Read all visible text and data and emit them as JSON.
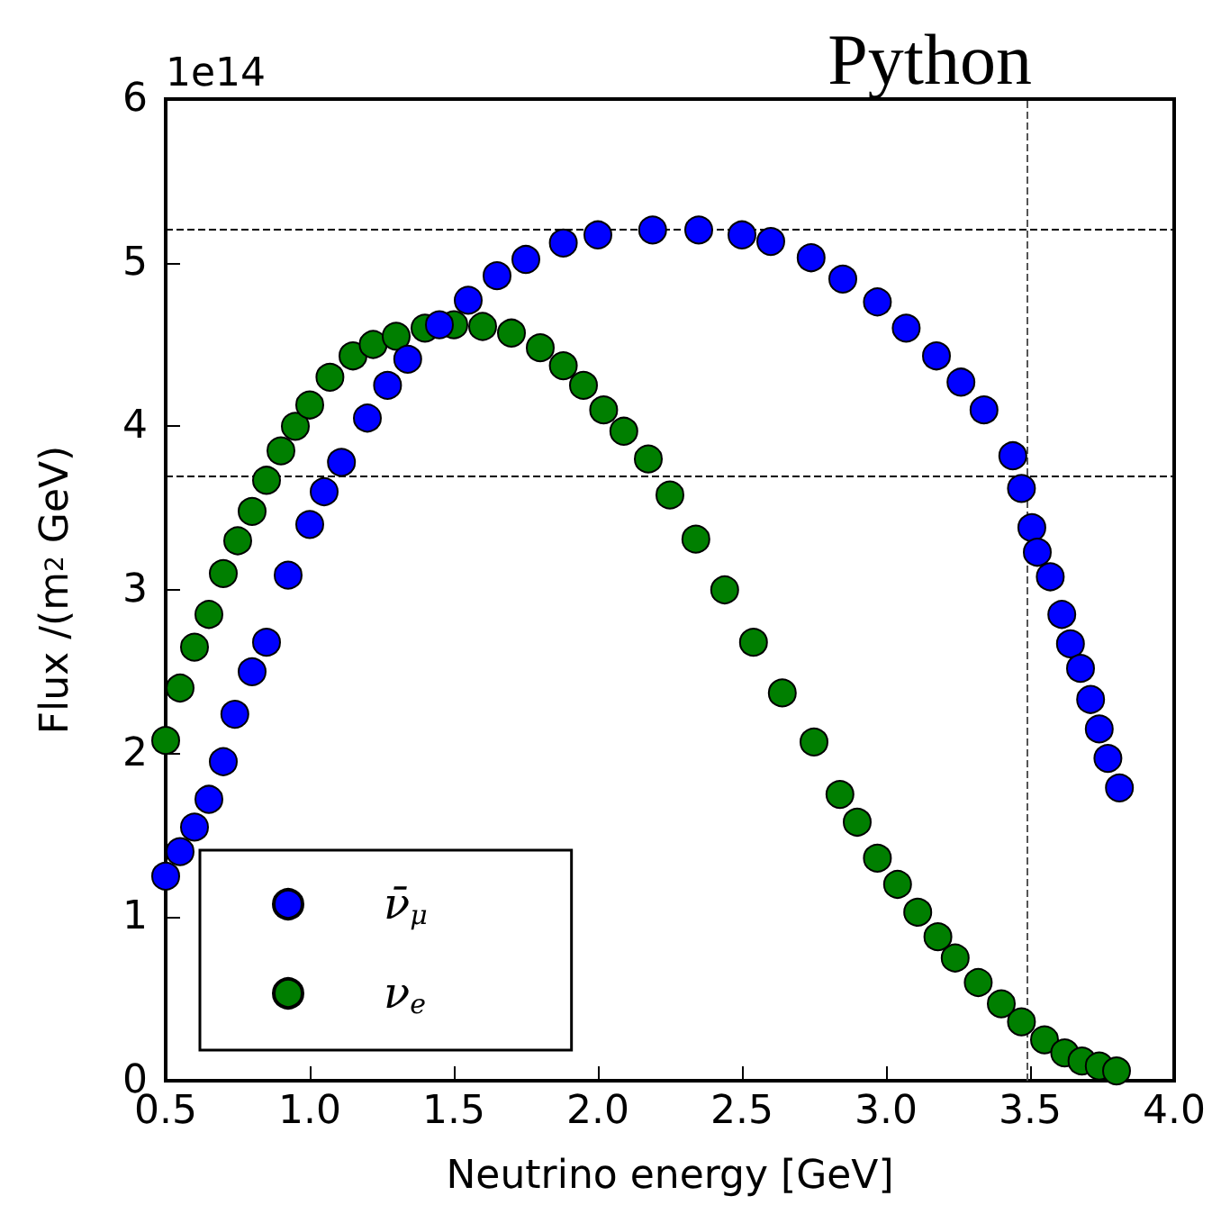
{
  "chart_data": {
    "type": "scatter",
    "title": "Python",
    "xlabel": "Neutrino energy [GeV]",
    "ylabel": "Flux /(m$^{2}$ GeV)",
    "annotations": [
      "1e14"
    ],
    "xlim": [
      0.5,
      4.0
    ],
    "xticks": [
      0.5,
      {
        "value": 1,
        "label": "1.0"
      },
      1.5,
      {
        "value": 2,
        "label": "2.0"
      },
      2.5,
      {
        "value": 3,
        "label": "3.0"
      },
      3.5,
      {
        "value": 4,
        "label": "4.0"
      }
    ],
    "ylim": [
      0,
      6
    ],
    "yticks": [
      0,
      1,
      2,
      3,
      4,
      5,
      6
    ],
    "grid": false,
    "legend": "bottom left",
    "marker": "circle",
    "ref_lines": [
      {
        "axis": "y",
        "value": 5.2,
        "color": "#000000",
        "line_style": "dashed"
      },
      {
        "axis": "y",
        "value": 3.7,
        "color": "#000000",
        "line_style": "dashed"
      },
      {
        "axis": "x",
        "value": 3.49,
        "color": "#555555",
        "line_style": "dashed"
      }
    ],
    "series": [
      {
        "name": "ν̄$_{μ}$",
        "color": "#0000ff",
        "x": [
          0.5,
          0.55,
          0.6,
          0.65,
          0.7,
          0.74,
          0.8,
          0.85,
          0.925,
          1.0,
          1.05,
          1.11,
          1.2,
          1.27,
          1.34,
          1.45,
          1.55,
          1.65,
          1.75,
          1.88,
          2.0,
          2.19,
          2.35,
          2.5,
          2.6,
          2.74,
          2.85,
          2.97,
          3.07,
          3.175,
          3.26,
          3.34,
          3.44,
          3.47,
          3.506,
          3.525,
          3.57,
          3.61,
          3.64,
          3.675,
          3.71,
          3.74,
          3.77,
          3.81
        ],
        "values": [
          1.25,
          1.4,
          1.55,
          1.72,
          1.95,
          2.24,
          2.5,
          2.68,
          3.09,
          3.4,
          3.6,
          3.78,
          4.05,
          4.25,
          4.41,
          4.62,
          4.77,
          4.92,
          5.02,
          5.12,
          5.17,
          5.2,
          5.2,
          5.17,
          5.13,
          5.03,
          4.9,
          4.76,
          4.6,
          4.43,
          4.27,
          4.1,
          3.82,
          3.62,
          3.38,
          3.23,
          3.08,
          2.85,
          2.67,
          2.52,
          2.33,
          2.15,
          1.97,
          1.79
        ]
      },
      {
        "name": "ν$_{e}$",
        "color": "#007f00",
        "x": [
          0.5,
          0.55,
          0.6,
          0.65,
          0.7,
          0.75,
          0.8,
          0.85,
          0.9,
          0.95,
          1.0,
          1.07,
          1.15,
          1.22,
          1.3,
          1.4,
          1.5,
          1.6,
          1.7,
          1.8,
          1.88,
          1.95,
          2.02,
          2.09,
          2.175,
          2.25,
          2.34,
          2.44,
          2.54,
          2.64,
          2.75,
          2.84,
          2.9,
          2.97,
          3.04,
          3.11,
          3.18,
          3.24,
          3.32,
          3.4,
          3.47,
          3.55,
          3.62,
          3.68,
          3.74,
          3.8
        ],
        "values": [
          2.08,
          2.4,
          2.65,
          2.85,
          3.1,
          3.3,
          3.48,
          3.67,
          3.85,
          4.0,
          4.13,
          4.3,
          4.43,
          4.5,
          4.55,
          4.6,
          4.62,
          4.61,
          4.57,
          4.48,
          4.37,
          4.25,
          4.1,
          3.97,
          3.8,
          3.58,
          3.31,
          3.0,
          2.68,
          2.37,
          2.07,
          1.75,
          1.58,
          1.36,
          1.2,
          1.03,
          0.88,
          0.75,
          0.6,
          0.47,
          0.36,
          0.25,
          0.17,
          0.12,
          0.09,
          0.06
        ]
      }
    ]
  }
}
